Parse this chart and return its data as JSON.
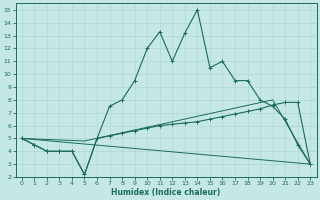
{
  "xlabel": "Humidex (Indice chaleur)",
  "bg_color": "#c5e8e5",
  "line_color": "#1a6b5a",
  "xlim": [
    -0.5,
    23.5
  ],
  "ylim": [
    2,
    15.5
  ],
  "xticks": [
    0,
    1,
    2,
    3,
    4,
    5,
    6,
    7,
    8,
    9,
    10,
    11,
    12,
    13,
    14,
    15,
    16,
    17,
    18,
    19,
    20,
    21,
    22,
    23
  ],
  "yticks": [
    2,
    3,
    4,
    5,
    6,
    7,
    8,
    9,
    10,
    11,
    12,
    13,
    14,
    15
  ],
  "line1_x": [
    0,
    1,
    2,
    3,
    4,
    5,
    6,
    7,
    8,
    9,
    10,
    11,
    12,
    13,
    14,
    15,
    16,
    17,
    18,
    19,
    20,
    21,
    22,
    23
  ],
  "line1_y": [
    5.0,
    4.5,
    4.0,
    4.0,
    4.0,
    2.2,
    5.0,
    7.5,
    8.0,
    9.5,
    12.0,
    13.3,
    11.0,
    13.2,
    15.0,
    10.5,
    11.0,
    9.5,
    9.5,
    8.0,
    7.5,
    6.5,
    4.5,
    3.0
  ],
  "line2_x": [
    0,
    1,
    2,
    3,
    4,
    5,
    6,
    7,
    8,
    9,
    10,
    11,
    12,
    13,
    14,
    15,
    16,
    17,
    18,
    19,
    20,
    21,
    22,
    23
  ],
  "line2_y": [
    5.0,
    4.5,
    4.0,
    4.0,
    4.0,
    2.2,
    5.0,
    5.2,
    5.4,
    5.6,
    5.8,
    6.0,
    6.1,
    6.2,
    6.3,
    6.5,
    6.7,
    6.9,
    7.1,
    7.3,
    7.6,
    7.8,
    7.8,
    3.0
  ],
  "line3_x": [
    0,
    23
  ],
  "line3_y": [
    5.0,
    3.0
  ],
  "line4_x": [
    0,
    5,
    20,
    23
  ],
  "line4_y": [
    5.0,
    4.8,
    8.0,
    3.0
  ]
}
